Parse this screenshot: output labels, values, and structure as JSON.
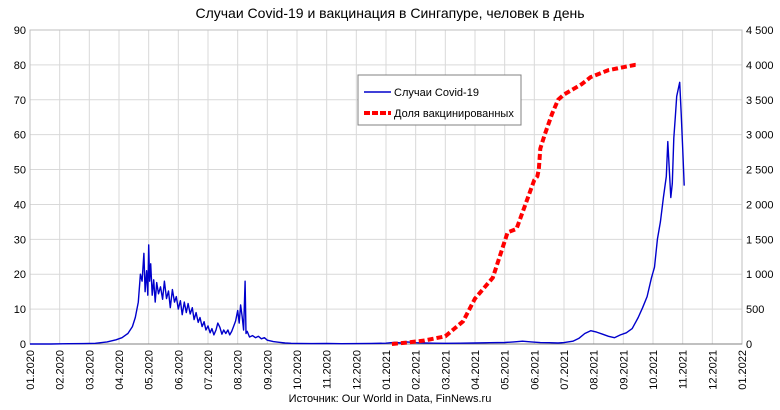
{
  "chart_data": {
    "type": "line",
    "title": "Случаи Covid-19 и вакцинация в Сингапуре, человек в день",
    "source": "Источник: Our World in Data, FinNews.ru",
    "x_axis": {
      "unit": "months since 01.2020",
      "range": [
        0,
        24
      ],
      "tick_labels": [
        "01.2020",
        "02.2020",
        "03.2020",
        "04.2020",
        "05.2020",
        "06.2020",
        "07.2020",
        "08.2020",
        "09.2020",
        "10.2020",
        "11.2020",
        "12.2020",
        "01.2021",
        "02.2021",
        "03.2021",
        "04.2021",
        "05.2021",
        "06.2021",
        "07.2021",
        "08.2021",
        "09.2021",
        "10.2021",
        "11.2021",
        "12.2021",
        "01.2022"
      ]
    },
    "y_left": {
      "range": [
        0,
        90
      ],
      "tick_values": [
        0,
        10,
        20,
        30,
        40,
        50,
        60,
        70,
        80,
        90
      ],
      "tick_labels": [
        "0",
        "10",
        "20",
        "30",
        "40",
        "50",
        "60",
        "70",
        "80",
        "90"
      ]
    },
    "y_right": {
      "range": [
        0,
        4500
      ],
      "tick_values": [
        0,
        500,
        1000,
        1500,
        2000,
        2500,
        3000,
        3500,
        4000,
        4500
      ],
      "tick_labels": [
        "0",
        "500",
        "1 000",
        "1 500",
        "2 000",
        "2 500",
        "3 000",
        "3 500",
        "4 000",
        "4 500"
      ]
    },
    "legend": {
      "placement": "top-center",
      "entries": [
        "Случаи Covid-19",
        "Доля вакцинированных"
      ]
    },
    "series": [
      {
        "name": "Случаи Covid-19",
        "axis": "right",
        "color": "#0000cc",
        "style": "line",
        "points": [
          [
            0.0,
            0
          ],
          [
            0.7,
            0
          ],
          [
            1.3,
            4
          ],
          [
            1.8,
            6
          ],
          [
            2.2,
            10
          ],
          [
            2.6,
            30
          ],
          [
            2.9,
            60
          ],
          [
            3.1,
            90
          ],
          [
            3.3,
            150
          ],
          [
            3.45,
            250
          ],
          [
            3.55,
            380
          ],
          [
            3.65,
            600
          ],
          [
            3.72,
            1000
          ],
          [
            3.78,
            900
          ],
          [
            3.84,
            1300
          ],
          [
            3.88,
            750
          ],
          [
            3.93,
            1050
          ],
          [
            3.97,
            700
          ],
          [
            4.0,
            1420
          ],
          [
            4.03,
            900
          ],
          [
            4.07,
            1150
          ],
          [
            4.12,
            700
          ],
          [
            4.17,
            920
          ],
          [
            4.22,
            600
          ],
          [
            4.27,
            880
          ],
          [
            4.33,
            720
          ],
          [
            4.4,
            820
          ],
          [
            4.47,
            640
          ],
          [
            4.53,
            900
          ],
          [
            4.6,
            650
          ],
          [
            4.67,
            760
          ],
          [
            4.73,
            520
          ],
          [
            4.8,
            780
          ],
          [
            4.87,
            600
          ],
          [
            4.93,
            680
          ],
          [
            5.0,
            500
          ],
          [
            5.07,
            620
          ],
          [
            5.13,
            420
          ],
          [
            5.2,
            600
          ],
          [
            5.27,
            450
          ],
          [
            5.33,
            580
          ],
          [
            5.4,
            430
          ],
          [
            5.47,
            520
          ],
          [
            5.53,
            350
          ],
          [
            5.6,
            450
          ],
          [
            5.67,
            310
          ],
          [
            5.73,
            380
          ],
          [
            5.8,
            250
          ],
          [
            5.87,
            320
          ],
          [
            5.93,
            200
          ],
          [
            6.0,
            260
          ],
          [
            6.07,
            160
          ],
          [
            6.13,
            220
          ],
          [
            6.2,
            130
          ],
          [
            6.27,
            200
          ],
          [
            6.33,
            300
          ],
          [
            6.4,
            240
          ],
          [
            6.47,
            140
          ],
          [
            6.53,
            200
          ],
          [
            6.6,
            150
          ],
          [
            6.67,
            200
          ],
          [
            6.73,
            130
          ],
          [
            6.8,
            180
          ],
          [
            6.87,
            260
          ],
          [
            6.93,
            330
          ],
          [
            7.0,
            480
          ],
          [
            7.05,
            300
          ],
          [
            7.1,
            560
          ],
          [
            7.15,
            400
          ],
          [
            7.2,
            200
          ],
          [
            7.25,
            900
          ],
          [
            7.28,
            150
          ],
          [
            7.32,
            180
          ],
          [
            7.4,
            100
          ],
          [
            7.5,
            120
          ],
          [
            7.6,
            90
          ],
          [
            7.7,
            110
          ],
          [
            7.8,
            75
          ],
          [
            7.9,
            90
          ],
          [
            8.0,
            55
          ],
          [
            8.2,
            35
          ],
          [
            8.4,
            25
          ],
          [
            8.6,
            15
          ],
          [
            8.8,
            10
          ],
          [
            9.0,
            8
          ],
          [
            9.5,
            6
          ],
          [
            10.0,
            8
          ],
          [
            10.5,
            5
          ],
          [
            11.0,
            6
          ],
          [
            11.5,
            9
          ],
          [
            12.0,
            12
          ],
          [
            12.3,
            25
          ],
          [
            12.5,
            15
          ],
          [
            12.7,
            30
          ],
          [
            13.0,
            18
          ],
          [
            13.3,
            15
          ],
          [
            13.6,
            12
          ],
          [
            14.0,
            10
          ],
          [
            14.5,
            12
          ],
          [
            15.0,
            15
          ],
          [
            15.5,
            18
          ],
          [
            16.0,
            22
          ],
          [
            16.3,
            30
          ],
          [
            16.6,
            40
          ],
          [
            16.9,
            30
          ],
          [
            17.2,
            20
          ],
          [
            17.5,
            18
          ],
          [
            17.8,
            15
          ],
          [
            18.0,
            20
          ],
          [
            18.3,
            40
          ],
          [
            18.5,
            80
          ],
          [
            18.7,
            150
          ],
          [
            18.9,
            190
          ],
          [
            19.1,
            170
          ],
          [
            19.3,
            140
          ],
          [
            19.5,
            110
          ],
          [
            19.7,
            90
          ],
          [
            19.9,
            130
          ],
          [
            20.1,
            160
          ],
          [
            20.3,
            220
          ],
          [
            20.5,
            380
          ],
          [
            20.65,
            520
          ],
          [
            20.8,
            680
          ],
          [
            20.95,
            950
          ],
          [
            21.05,
            1100
          ],
          [
            21.15,
            1500
          ],
          [
            21.25,
            1750
          ],
          [
            21.35,
            2100
          ],
          [
            21.45,
            2400
          ],
          [
            21.5,
            2900
          ],
          [
            21.55,
            2500
          ],
          [
            21.6,
            2100
          ],
          [
            21.65,
            2300
          ],
          [
            21.7,
            2950
          ],
          [
            21.75,
            3250
          ],
          [
            21.8,
            3550
          ],
          [
            21.85,
            3650
          ],
          [
            21.9,
            3750
          ],
          [
            21.95,
            3300
          ],
          [
            22.0,
            2800
          ],
          [
            22.05,
            2270
          ]
        ]
      },
      {
        "name": "Доля вакцинированных",
        "axis": "left",
        "color": "#ff0000",
        "style": "dashed-thick",
        "points": [
          [
            12.2,
            0
          ],
          [
            12.45,
            0.2
          ],
          [
            12.7,
            0.4
          ],
          [
            13.3,
            1.0
          ],
          [
            14.0,
            2.2
          ],
          [
            14.6,
            6.5
          ],
          [
            15.0,
            13.0
          ],
          [
            15.25,
            15.5
          ],
          [
            15.5,
            18.0
          ],
          [
            15.6,
            19.0
          ],
          [
            16.1,
            32.0
          ],
          [
            16.4,
            33.0
          ],
          [
            17.0,
            47.0
          ],
          [
            17.1,
            48.0
          ],
          [
            17.15,
            50.0
          ],
          [
            17.2,
            56.0
          ],
          [
            17.35,
            60.0
          ],
          [
            17.6,
            66.0
          ],
          [
            17.8,
            70.0
          ],
          [
            18.0,
            71.5
          ],
          [
            18.3,
            73.0
          ],
          [
            18.6,
            74.5
          ],
          [
            18.9,
            76.5
          ],
          [
            19.2,
            77.5
          ],
          [
            19.5,
            78.5
          ],
          [
            19.8,
            79.0
          ],
          [
            20.1,
            79.5
          ],
          [
            20.4,
            80.0
          ],
          [
            20.5,
            80.0
          ]
        ]
      }
    ],
    "grid": true
  }
}
